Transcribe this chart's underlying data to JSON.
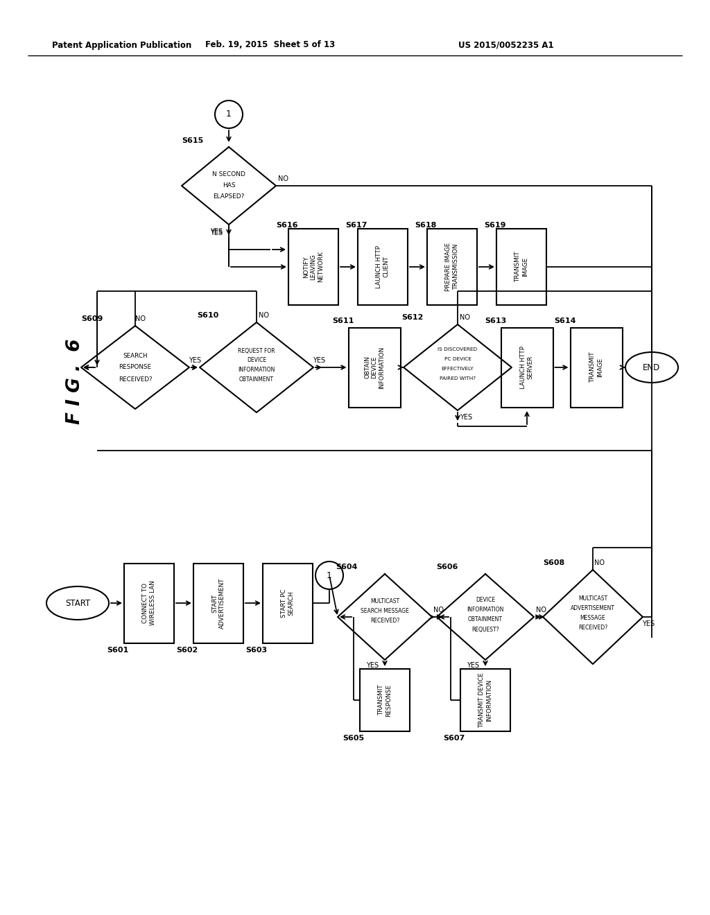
{
  "header_left": "Patent Application Publication",
  "header_center": "Feb. 19, 2015  Sheet 5 of 13",
  "header_right": "US 2015/0052235 A1",
  "fig_label": "F I G .  6",
  "bg_color": "#ffffff",
  "line_color": "#000000",
  "text_color": "#000000"
}
